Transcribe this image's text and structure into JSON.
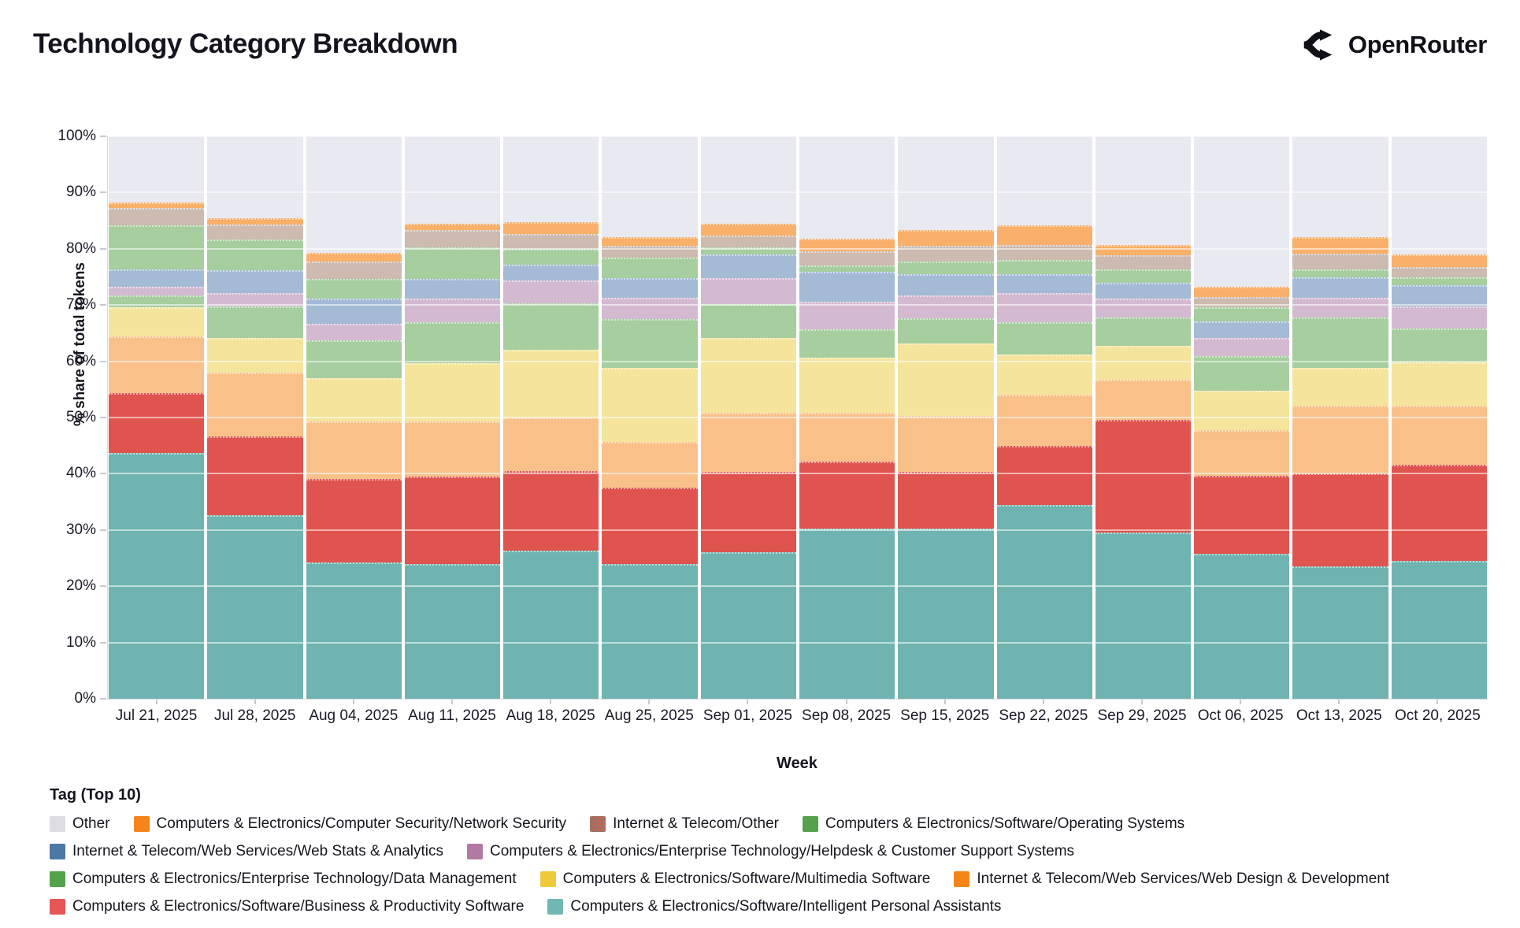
{
  "header": {
    "title": "Technology Category Breakdown",
    "brand": "OpenRouter"
  },
  "chart_data": {
    "type": "bar",
    "stacked": true,
    "normalized": true,
    "title": "Technology Category Breakdown",
    "xlabel": "Week",
    "ylabel": "% share of total tokens",
    "ylim": [
      0,
      100
    ],
    "ytick_labels": [
      "0%",
      "10%",
      "20%",
      "30%",
      "40%",
      "50%",
      "60%",
      "70%",
      "80%",
      "90%",
      "100%"
    ],
    "grid": true,
    "legend_title": "Tag (Top 10)",
    "categories": [
      "Jul 21, 2025",
      "Jul 28, 2025",
      "Aug 04, 2025",
      "Aug 11, 2025",
      "Aug 18, 2025",
      "Aug 25, 2025",
      "Sep 01, 2025",
      "Sep 08, 2025",
      "Sep 15, 2025",
      "Sep 22, 2025",
      "Sep 29, 2025",
      "Oct 06, 2025",
      "Oct 13, 2025",
      "Oct 20, 2025"
    ],
    "series": [
      {
        "name": "Computers & Electronics/Software/Intelligent Personal Assistants",
        "bar_color": "#6fb4b0",
        "legend_color": "#72b7b2",
        "pattern": "none",
        "values": [
          43.7,
          32.6,
          24.3,
          23.9,
          26.4,
          23.9,
          26.0,
          30.2,
          30.2,
          34.4,
          29.6,
          25.8,
          23.6,
          24.5
        ]
      },
      {
        "name": "Computers & Electronics/Software/Business & Productivity Software",
        "bar_color": "#e0544f",
        "legend_color": "#e45756",
        "pattern": "none",
        "values": [
          10.7,
          14.0,
          14.8,
          15.6,
          14.1,
          13.7,
          14.3,
          11.9,
          10.1,
          10.6,
          20.0,
          13.8,
          16.4,
          17.1
        ]
      },
      {
        "name": "Internet & Telecom/Web Services/Web Design & Development",
        "bar_color": "#f9c189",
        "legend_color": "#f58518",
        "pattern": "none",
        "values": [
          10.0,
          11.4,
          10.2,
          9.8,
          9.5,
          8.1,
          10.5,
          8.7,
          10.0,
          9.0,
          7.1,
          8.1,
          12.1,
          10.5
        ]
      },
      {
        "name": "Computers & Electronics/Software/Multimedia Software",
        "bar_color": "#f5e49c",
        "legend_color": "#eeca3b",
        "pattern": "none",
        "values": [
          5.2,
          6.1,
          7.7,
          10.4,
          12.1,
          13.1,
          13.3,
          9.8,
          12.9,
          7.2,
          6.1,
          7.0,
          6.7,
          7.7
        ]
      },
      {
        "name": "Computers & Electronics/Enterprise Technology/Data Management",
        "bar_color": "#a6ce9f",
        "legend_color": "#54a24b",
        "pattern": "none",
        "values": [
          2.1,
          5.7,
          6.7,
          7.3,
          8.2,
          8.7,
          6.1,
          5.1,
          4.5,
          5.8,
          5.0,
          6.3,
          9.0,
          6.0
        ]
      },
      {
        "name": "Computers & Electronics/Enterprise Technology/Helpdesk & Customer Support Systems",
        "bar_color": "#d4bad1",
        "legend_color": "#b279a2",
        "pattern": "dots",
        "values": [
          1.5,
          2.3,
          3.0,
          4.1,
          4.1,
          3.8,
          4.6,
          4.9,
          4.0,
          5.1,
          3.3,
          3.1,
          3.5,
          4.0
        ]
      },
      {
        "name": "Internet & Telecom/Web Services/Web Stats & Analytics",
        "bar_color": "#a4bad5",
        "legend_color": "#4c78a8",
        "pattern": "none",
        "values": [
          3.1,
          4.1,
          4.4,
          3.6,
          2.8,
          3.5,
          4.2,
          5.3,
          3.8,
          3.4,
          2.8,
          3.0,
          3.6,
          3.8
        ]
      },
      {
        "name": "Computers & Electronics/Software/Operating Systems",
        "bar_color": "#a6ce9f",
        "legend_color": "#54a24b",
        "pattern": "none",
        "values": [
          7.9,
          5.5,
          3.5,
          5.6,
          2.8,
          3.7,
          1.3,
          1.1,
          2.3,
          2.5,
          2.4,
          2.5,
          1.4,
          1.4
        ]
      },
      {
        "name": "Internet & Telecom/Other",
        "bar_color": "#cdbab0",
        "legend_color": "#9d755d",
        "pattern": "legend-dots",
        "values": [
          3.0,
          2.6,
          3.2,
          3.0,
          2.6,
          2.0,
          2.1,
          2.5,
          2.7,
          2.7,
          2.5,
          1.8,
          2.9,
          1.7
        ]
      },
      {
        "name": "Computers & Electronics/Computer Security/Network Security",
        "bar_color": "#f8b06a",
        "legend_color": "#f58518",
        "pattern": "none",
        "values": [
          1.1,
          1.1,
          1.5,
          1.2,
          2.1,
          1.6,
          2.1,
          2.3,
          2.8,
          3.5,
          1.9,
          1.8,
          2.9,
          2.3
        ]
      },
      {
        "name": "Other",
        "bar_color": "#e9e9f1",
        "legend_color": "#dcdce2",
        "pattern": "none",
        "values": [
          11.7,
          14.6,
          20.7,
          15.5,
          15.3,
          17.9,
          15.5,
          18.2,
          16.7,
          15.8,
          19.3,
          26.8,
          17.9,
          21.0
        ]
      }
    ],
    "legend_order": [
      "Other",
      "Computers & Electronics/Computer Security/Network Security",
      "Internet & Telecom/Other",
      "Computers & Electronics/Software/Operating Systems",
      "Internet & Telecom/Web Services/Web Stats & Analytics",
      "Computers & Electronics/Enterprise Technology/Helpdesk & Customer Support Systems",
      "Computers & Electronics/Enterprise Technology/Data Management",
      "Computers & Electronics/Software/Multimedia Software",
      "Internet & Telecom/Web Services/Web Design & Development",
      "Computers & Electronics/Software/Business & Productivity Software",
      "Computers & Electronics/Software/Intelligent Personal Assistants"
    ]
  }
}
